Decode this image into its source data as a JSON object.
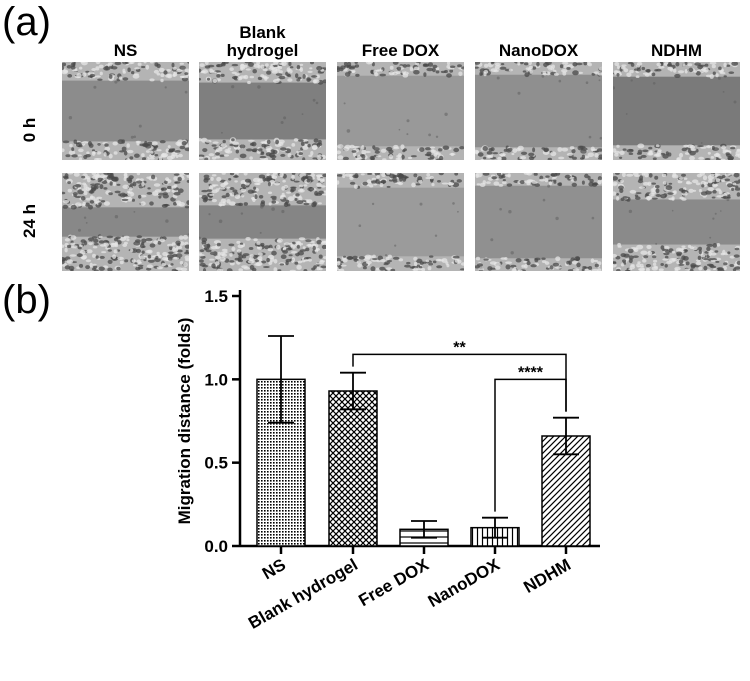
{
  "panel_a": {
    "label": "(a)",
    "columns": [
      "NS",
      "Blank\nhydrogel",
      "Free DOX",
      "NanoDOX",
      "NDHM"
    ],
    "rows": [
      "0 h",
      "24 h"
    ],
    "images": [
      {
        "col": 0,
        "row": 0,
        "gap": 0.62,
        "tone": "#8c8c8c"
      },
      {
        "col": 1,
        "row": 0,
        "gap": 0.58,
        "tone": "#7f7f7f"
      },
      {
        "col": 2,
        "row": 0,
        "gap": 0.72,
        "tone": "#999999"
      },
      {
        "col": 3,
        "row": 0,
        "gap": 0.74,
        "tone": "#8f8f8f"
      },
      {
        "col": 4,
        "row": 0,
        "gap": 0.7,
        "tone": "#7a7a7a"
      },
      {
        "col": 0,
        "row": 1,
        "gap": 0.3,
        "tone": "#888888"
      },
      {
        "col": 1,
        "row": 1,
        "gap": 0.34,
        "tone": "#858585"
      },
      {
        "col": 2,
        "row": 1,
        "gap": 0.7,
        "tone": "#9b9b9b"
      },
      {
        "col": 3,
        "row": 1,
        "gap": 0.74,
        "tone": "#909090"
      },
      {
        "col": 4,
        "row": 1,
        "gap": 0.46,
        "tone": "#8a8a8a"
      }
    ]
  },
  "panel_b": {
    "label": "(b)"
  },
  "chart_data": {
    "type": "bar",
    "categories": [
      "NS",
      "Blank hydrogel",
      "Free DOX",
      "NanoDOX",
      "NDHM"
    ],
    "values": [
      1.0,
      0.93,
      0.1,
      0.11,
      0.66
    ],
    "errors": [
      0.26,
      0.11,
      0.05,
      0.06,
      0.11
    ],
    "patterns": [
      "dense-dots",
      "crosshatch",
      "horizontal",
      "vertical",
      "diagonal"
    ],
    "ylabel": "Migration distance (folds)",
    "ylim": [
      0,
      1.5
    ],
    "yticks": [
      "0.0",
      "0.5",
      "1.0",
      "1.5"
    ],
    "ytick_values": [
      0,
      0.5,
      1.0,
      1.5
    ],
    "significance": [
      {
        "from": 1,
        "to": 4,
        "label": "**",
        "y": 1.15
      },
      {
        "from": 3,
        "to": 4,
        "label": "****",
        "y": 1.0
      }
    ]
  }
}
